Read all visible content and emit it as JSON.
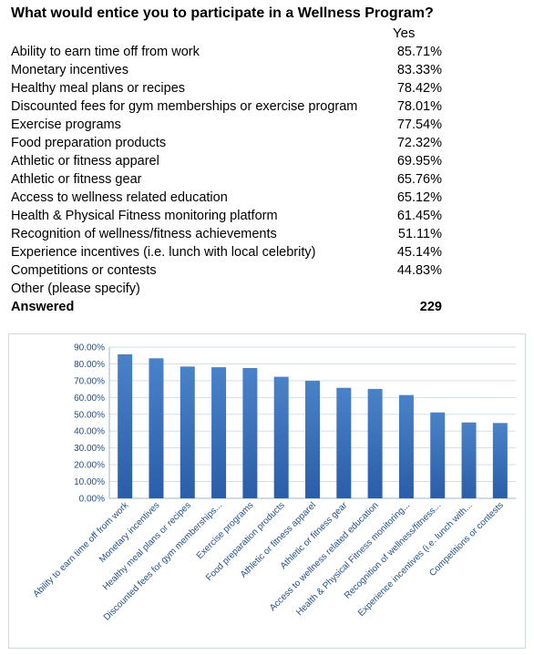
{
  "title": "What would entice you to participate in a Wellness Program?",
  "column_header": "Yes",
  "rows": [
    {
      "label": "Ability to earn time off from work",
      "value": "85.71%"
    },
    {
      "label": "Monetary incentives",
      "value": "83.33%"
    },
    {
      "label": "Healthy meal plans or recipes",
      "value": "78.42%"
    },
    {
      "label": "Discounted fees for gym memberships or exercise program",
      "value": "78.01%"
    },
    {
      "label": "Exercise programs",
      "value": "77.54%"
    },
    {
      "label": "Food preparation products",
      "value": "72.32%"
    },
    {
      "label": "Athletic or fitness apparel",
      "value": "69.95%"
    },
    {
      "label": "Athletic or fitness gear",
      "value": "65.76%"
    },
    {
      "label": "Access to wellness related education",
      "value": "65.12%"
    },
    {
      "label": "Health & Physical Fitness monitoring platform",
      "value": "61.45%"
    },
    {
      "label": "Recognition of wellness/fitness achievements",
      "value": "51.11%"
    },
    {
      "label": "Experience incentives (i.e. lunch with local celebrity)",
      "value": "45.14%"
    },
    {
      "label": "Competitions or contests",
      "value": "44.83%"
    },
    {
      "label": "Other (please specify)",
      "value": ""
    }
  ],
  "answered": {
    "label": "Answered",
    "value": "229"
  },
  "colors": {
    "bar_top": "#4a82c8",
    "bar_bottom": "#2a5ea8",
    "axis_text": "#1f4e8c",
    "grid": "#d0dfea"
  },
  "chart_data": {
    "type": "bar",
    "categories": [
      "Ability to earn time off from work",
      "Monetary incentives",
      "Healthy meal plans or recipes",
      "Discounted fees for gym memberships...",
      "Exercise programs",
      "Food preparation products",
      "Athletic or fitness apparel",
      "Athletic or fitness gear",
      "Access to wellness related education",
      "Health & Physical Fitness monitoring...",
      "Recognition of wellness/fitness...",
      "Experience incentives (i.e. lunch with...",
      "Competitions or contests"
    ],
    "values": [
      85.71,
      83.33,
      78.42,
      78.01,
      77.54,
      72.32,
      69.95,
      65.76,
      65.12,
      61.45,
      51.11,
      45.14,
      44.83
    ],
    "yticks": [
      "0.00%",
      "10.00%",
      "20.00%",
      "30.00%",
      "40.00%",
      "50.00%",
      "60.00%",
      "70.00%",
      "80.00%",
      "90.00%"
    ],
    "ylim": [
      0,
      90
    ],
    "grid": true,
    "legend": "none"
  }
}
